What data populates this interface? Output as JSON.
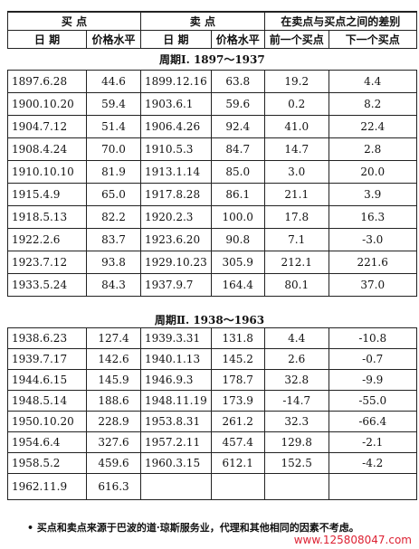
{
  "header": {
    "groups": [
      "买 点",
      "卖 点",
      "在卖点与买点之间的差别"
    ],
    "columns": [
      "日 期",
      "价格水平",
      "日 期",
      "价格水平",
      "前一个买点",
      "下一个买点"
    ]
  },
  "periods": [
    {
      "title": "周期Ⅰ. 1897～1937",
      "rows": [
        [
          "1897.6.28",
          "44.6",
          "1899.12.16",
          "63.8",
          "19.2",
          "4.4"
        ],
        [
          "1900.10.20",
          "59.4",
          "1903.6.1",
          "59.6",
          "0.2",
          "8.2"
        ],
        [
          "1904.7.12",
          "51.4",
          "1906.4.26",
          "92.4",
          "41.0",
          "22.4"
        ],
        [
          "1908.4.24",
          "70.0",
          "1910.5.3",
          "84.7",
          "14.7",
          "2.8"
        ],
        [
          "1910.10.10",
          "81.9",
          "1913.1.14",
          "85.0",
          "3.0",
          "20.0"
        ],
        [
          "1915.4.9",
          "65.0",
          "1917.8.28",
          "86.1",
          "21.1",
          "3.9"
        ],
        [
          "1918.5.13",
          "82.2",
          "1920.2.3",
          "100.0",
          "17.8",
          "16.3"
        ],
        [
          "1922.2.6",
          "83.7",
          "1923.6.20",
          "90.8",
          "7.1",
          "-3.0"
        ],
        [
          "1923.7.12",
          "93.8",
          "1929.10.23",
          "305.9",
          "212.1",
          "221.6"
        ],
        [
          "1933.5.24",
          "84.3",
          "1937.9.7",
          "164.4",
          "80.1",
          "37.0"
        ]
      ]
    },
    {
      "title": "周期Ⅱ. 1938～1963",
      "rows": [
        [
          "1938.6.23",
          "127.4",
          "1939.3.31",
          "131.8",
          "4.4",
          "-10.8"
        ],
        [
          "1939.7.17",
          "142.6",
          "1940.1.13",
          "145.2",
          "2.6",
          "-0.7"
        ],
        [
          "1944.6.15",
          "145.9",
          "1946.9.3",
          "178.7",
          "32.8",
          "-9.9"
        ],
        [
          "1948.5.14",
          "188.6",
          "1948.11.19",
          "173.9",
          "-14.7",
          "-55.0"
        ],
        [
          "1950.10.20",
          "228.9",
          "1953.8.31",
          "261.2",
          "32.3",
          "-66.4"
        ],
        [
          "1954.6.4",
          "327.6",
          "1957.2.11",
          "457.4",
          "129.8",
          "-2.1"
        ],
        [
          "1958.5.2",
          "459.6",
          "1960.3.15",
          "612.1",
          "152.5",
          "-4.2"
        ],
        [
          "1962.11.9",
          "616.3"
        ]
      ]
    }
  ],
  "footnote": "• 买点和卖点来源于巴波的道·琼斯服务业，代理和其他相同的因素不考虑。",
  "watermark": "www.125808047.com"
}
